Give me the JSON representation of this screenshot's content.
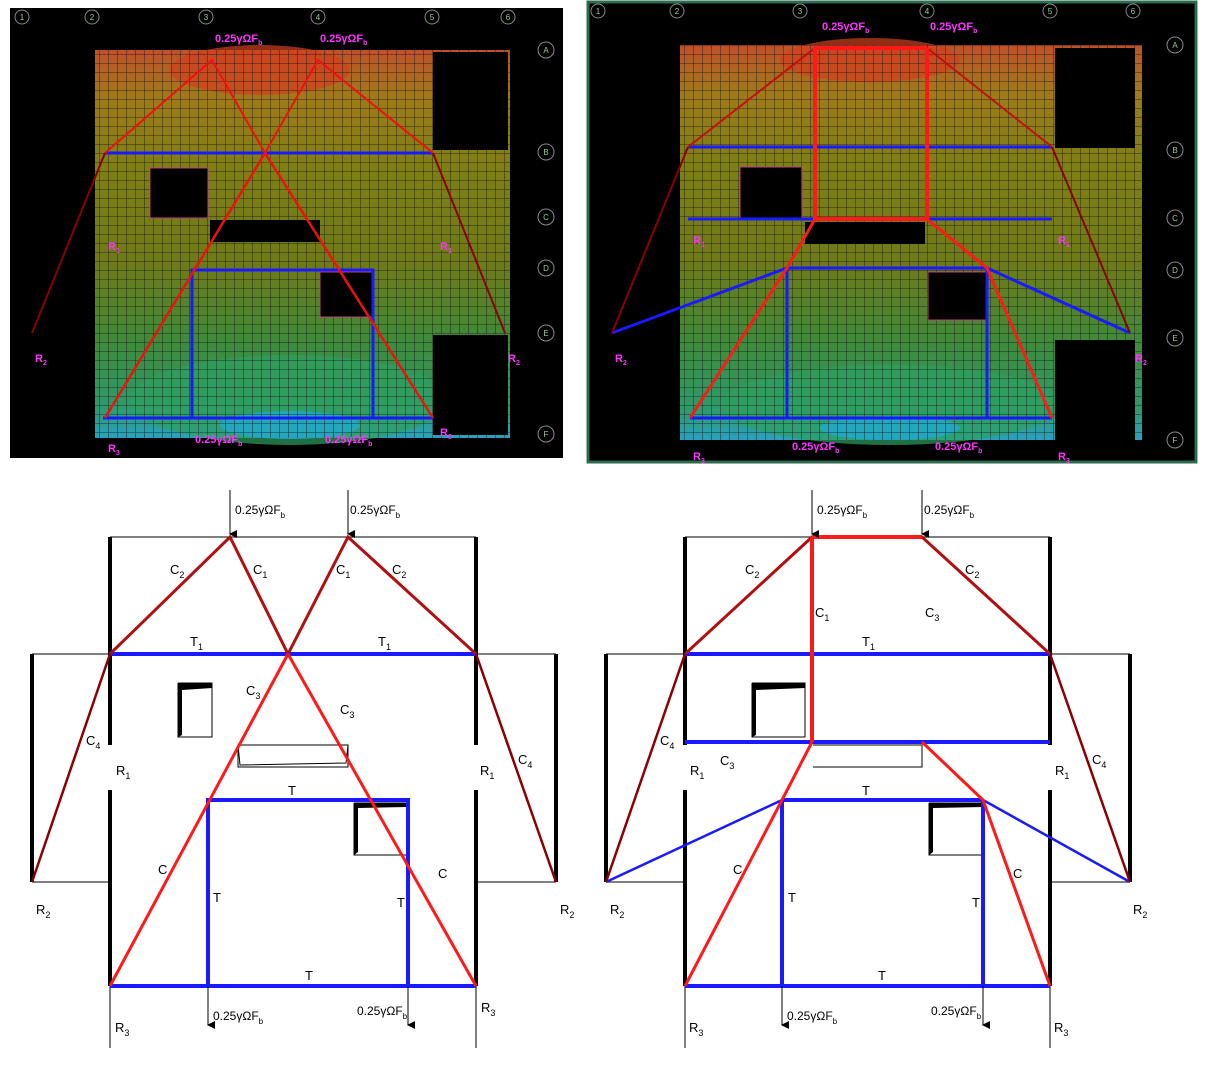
{
  "figure": {
    "panels": [
      {
        "id": "top-left",
        "kind": "contour"
      },
      {
        "id": "top-right",
        "kind": "contour"
      },
      {
        "id": "bottom-left",
        "kind": "diagram"
      },
      {
        "id": "bottom-right",
        "kind": "diagram"
      }
    ]
  },
  "labels": {
    "load": "0.25γΩF",
    "load_sub": "b",
    "C": "C",
    "T": "T",
    "R": "R",
    "c1": "1",
    "c2": "2",
    "c3": "3",
    "c4": "4",
    "t1": "1",
    "r1": "1",
    "r2": "2",
    "r3": "3"
  },
  "grid": {
    "cols": [
      "1",
      "2",
      "3",
      "4",
      "5",
      "6"
    ],
    "rows": [
      "A",
      "B",
      "C",
      "D",
      "E",
      "F"
    ]
  },
  "colors": {
    "compression": "#ff1a1a",
    "compression_dark": "#8b0000",
    "tension": "#1a1aff",
    "member": "#000000",
    "load_label": "#ff33ff",
    "frame": "#2e6b4f"
  }
}
